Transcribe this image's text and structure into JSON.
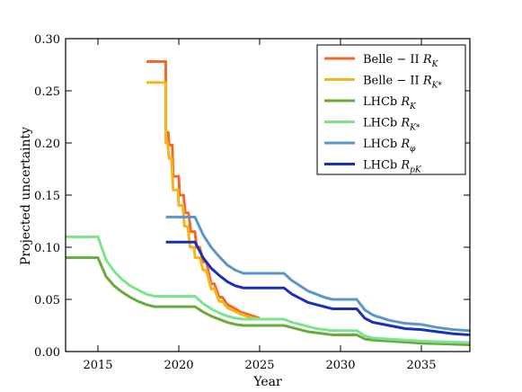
{
  "chart_data": {
    "type": "line",
    "xlabel": "Year",
    "ylabel": "Projected uncertainty",
    "xlim": [
      2013,
      2038
    ],
    "ylim": [
      0,
      0.3
    ],
    "xticks": [
      2015,
      2020,
      2025,
      2030,
      2035
    ],
    "xtick_labels": [
      "2015",
      "2020",
      "2025",
      "2030",
      "2035"
    ],
    "yticks": [
      0,
      0.05,
      0.1,
      0.15,
      0.2,
      0.25,
      0.3
    ],
    "ytick_labels": [
      "0.00",
      "0.05",
      "0.10",
      "0.15",
      "0.20",
      "0.25",
      "0.30"
    ],
    "grid": false,
    "legend_position": "top-right",
    "series": [
      {
        "name": "Belle − II  R_K",
        "legend": {
          "main": "Belle − II  ",
          "sym": "R",
          "sub": "K"
        },
        "color": "#f06a2a",
        "x": [
          2018.0,
          2019.2,
          2019.2,
          2019.35,
          2019.4,
          2019.6,
          2019.65,
          2020.0,
          2020.05,
          2020.3,
          2020.4,
          2020.6,
          2020.75,
          2021.0,
          2021.1,
          2021.3,
          2021.5,
          2021.7,
          2022.0,
          2022.2,
          2022.5,
          2022.7,
          2023.0,
          2023.4,
          2023.8,
          2024.2,
          2024.6,
          2025.0
        ],
        "y": [
          0.278,
          0.278,
          0.21,
          0.21,
          0.198,
          0.198,
          0.168,
          0.168,
          0.15,
          0.15,
          0.133,
          0.133,
          0.115,
          0.115,
          0.1,
          0.1,
          0.086,
          0.086,
          0.065,
          0.065,
          0.052,
          0.052,
          0.045,
          0.042,
          0.038,
          0.036,
          0.034,
          0.032
        ]
      },
      {
        "name": "Belle − II  R_K*",
        "legend": {
          "main": "Belle − II  ",
          "sym": "R",
          "sub": "K*"
        },
        "color": "#f5b31c",
        "x": [
          2018.0,
          2019.2,
          2019.2,
          2019.3,
          2019.4,
          2019.55,
          2019.65,
          2019.95,
          2020.0,
          2020.25,
          2020.35,
          2020.55,
          2020.7,
          2020.95,
          2021.0,
          2021.3,
          2021.5,
          2021.7,
          2022.0,
          2022.2,
          2022.5,
          2022.7,
          2023.0,
          2023.4,
          2023.8,
          2024.2,
          2024.6,
          2025.0
        ],
        "y": [
          0.258,
          0.258,
          0.2,
          0.2,
          0.185,
          0.185,
          0.155,
          0.155,
          0.14,
          0.14,
          0.12,
          0.12,
          0.1,
          0.1,
          0.09,
          0.09,
          0.078,
          0.078,
          0.06,
          0.06,
          0.048,
          0.048,
          0.042,
          0.039,
          0.036,
          0.034,
          0.032,
          0.031
        ]
      },
      {
        "name": "LHCb  R_K",
        "legend": {
          "main": "LHCb  ",
          "sym": "R",
          "sub": "K"
        },
        "color": "#6aaa3a",
        "x": [
          2013.0,
          2015.0,
          2015.5,
          2016.0,
          2016.5,
          2017.0,
          2017.5,
          2018.0,
          2018.5,
          2019.0,
          2021.0,
          2021.5,
          2022.0,
          2022.5,
          2023.0,
          2023.5,
          2024.0,
          2026.5,
          2027.0,
          2027.5,
          2028.0,
          2028.5,
          2029.0,
          2029.5,
          2030.0,
          2031.0,
          2031.5,
          2032.0,
          2033.0,
          2034.0,
          2035.0,
          2036.0,
          2037.0,
          2038.0
        ],
        "y": [
          0.09,
          0.09,
          0.072,
          0.063,
          0.057,
          0.052,
          0.048,
          0.045,
          0.043,
          0.043,
          0.043,
          0.038,
          0.034,
          0.031,
          0.028,
          0.026,
          0.025,
          0.025,
          0.023,
          0.021,
          0.019,
          0.018,
          0.017,
          0.016,
          0.016,
          0.016,
          0.012,
          0.011,
          0.01,
          0.009,
          0.008,
          0.0075,
          0.007,
          0.0065
        ]
      },
      {
        "name": "LHCb  R_K*",
        "legend": {
          "main": "LHCb  ",
          "sym": "R",
          "sub": "K*"
        },
        "color": "#7be48e",
        "x": [
          2013.0,
          2015.0,
          2015.5,
          2016.0,
          2016.5,
          2017.0,
          2017.5,
          2018.0,
          2018.5,
          2019.0,
          2021.0,
          2021.5,
          2022.0,
          2022.5,
          2023.0,
          2023.5,
          2024.0,
          2026.5,
          2027.0,
          2027.5,
          2028.0,
          2028.5,
          2029.0,
          2029.5,
          2030.0,
          2031.0,
          2031.5,
          2032.0,
          2033.0,
          2034.0,
          2035.0,
          2036.0,
          2037.0,
          2038.0
        ],
        "y": [
          0.11,
          0.11,
          0.088,
          0.077,
          0.069,
          0.063,
          0.059,
          0.055,
          0.053,
          0.053,
          0.053,
          0.046,
          0.041,
          0.037,
          0.034,
          0.032,
          0.031,
          0.031,
          0.028,
          0.026,
          0.024,
          0.022,
          0.021,
          0.02,
          0.02,
          0.02,
          0.015,
          0.013,
          0.012,
          0.011,
          0.01,
          0.0095,
          0.009,
          0.0085
        ]
      },
      {
        "name": "LHCb  R_φ",
        "legend": {
          "main": "LHCb  ",
          "sym": "R",
          "sub": "φ"
        },
        "color": "#5a97c8",
        "x": [
          2019.2,
          2021.0,
          2021.5,
          2022.0,
          2022.5,
          2023.0,
          2023.5,
          2024.0,
          2026.5,
          2027.0,
          2027.5,
          2028.0,
          2028.5,
          2029.0,
          2029.5,
          2030.0,
          2031.0,
          2031.5,
          2032.0,
          2033.0,
          2034.0,
          2035.0,
          2036.0,
          2037.0,
          2038.0
        ],
        "y": [
          0.129,
          0.129,
          0.112,
          0.1,
          0.091,
          0.083,
          0.078,
          0.075,
          0.075,
          0.068,
          0.063,
          0.058,
          0.055,
          0.052,
          0.05,
          0.05,
          0.05,
          0.04,
          0.035,
          0.03,
          0.027,
          0.026,
          0.023,
          0.021,
          0.02
        ]
      },
      {
        "name": "LHCb  R_pK",
        "legend": {
          "main": "LHCb  ",
          "sym": "R",
          "sub": "pK"
        },
        "color": "#1a2fb8",
        "x": [
          2019.2,
          2021.0,
          2021.5,
          2022.0,
          2022.5,
          2023.0,
          2023.5,
          2024.0,
          2026.5,
          2027.0,
          2027.5,
          2028.0,
          2028.5,
          2029.0,
          2029.5,
          2030.0,
          2031.0,
          2031.5,
          2032.0,
          2033.0,
          2034.0,
          2035.0,
          2036.0,
          2037.0,
          2038.0
        ],
        "y": [
          0.105,
          0.105,
          0.09,
          0.08,
          0.073,
          0.067,
          0.063,
          0.061,
          0.061,
          0.055,
          0.051,
          0.047,
          0.045,
          0.043,
          0.041,
          0.041,
          0.041,
          0.032,
          0.028,
          0.025,
          0.022,
          0.021,
          0.019,
          0.017,
          0.016
        ]
      }
    ]
  }
}
